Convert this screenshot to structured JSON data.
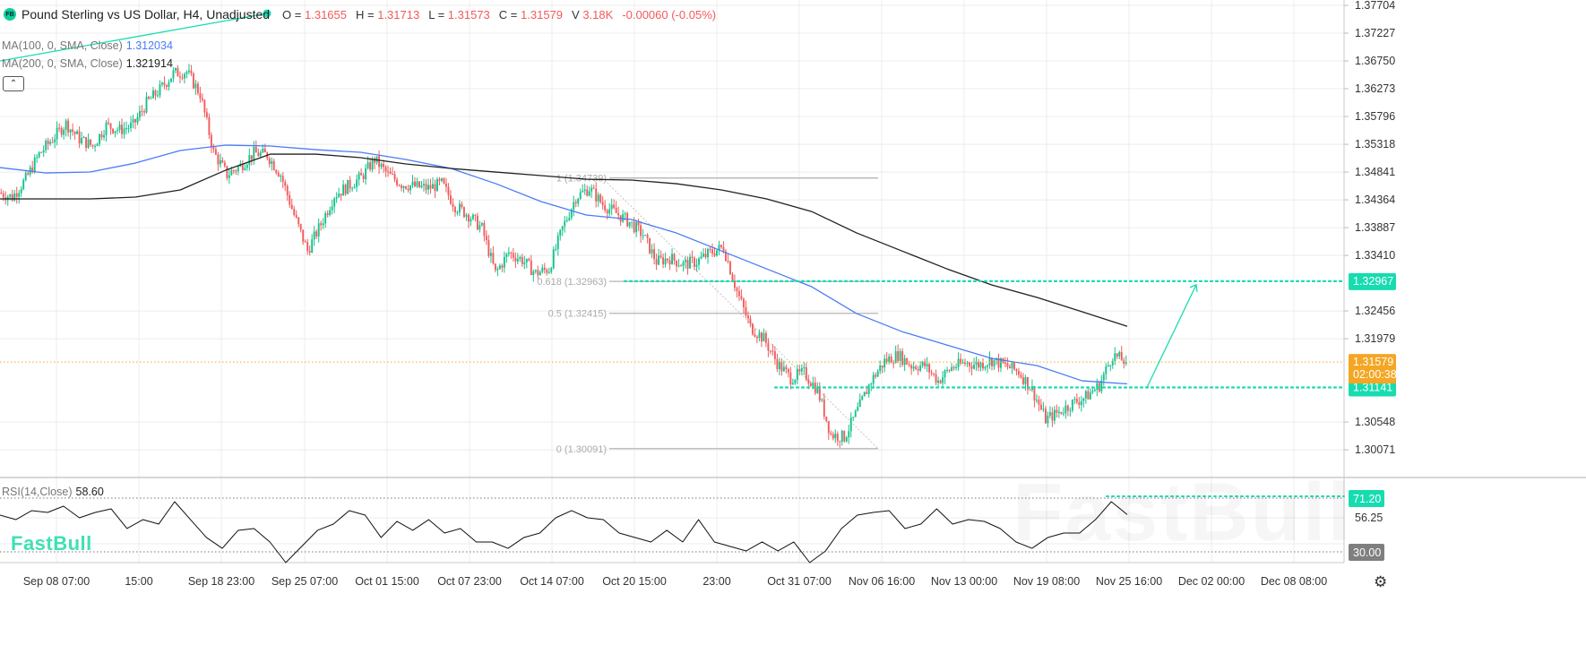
{
  "header": {
    "badge": "FB",
    "title": "Pound Sterling vs US Dollar, H4, Unadjusted",
    "ohlc": [
      {
        "label": "O =",
        "value": "1.31655"
      },
      {
        "label": "H =",
        "value": "1.31713"
      },
      {
        "label": "L =",
        "value": "1.31573"
      },
      {
        "label": "C =",
        "value": "1.31579"
      },
      {
        "label": "V",
        "value": "3.18K"
      }
    ],
    "change": "-0.00060 (-0.05%)"
  },
  "indicators": {
    "ma100": {
      "label": "MA(100, 0, SMA, Close)",
      "value": "1.312034",
      "color": "#4a7cf6"
    },
    "ma200": {
      "label": "MA(200, 0, SMA, Close)",
      "value": "1.321914",
      "color": "#222222"
    },
    "rsi": {
      "label": "RSI(14,Close)",
      "value": "58.60"
    }
  },
  "collapse_icon": "chevron-up-icon",
  "logo_text": "FastBull",
  "settings_icon": "gear-icon",
  "colors": {
    "up": "#12c28c",
    "down": "#f25b5b",
    "accent": "#16dcb0",
    "last_price": "#f5a623",
    "rsi_low_tag": "#7f7f7f"
  },
  "chart_data": [
    {
      "type": "candlestick",
      "title": "Pound Sterling vs US Dollar, H4, Unadjusted",
      "y_axis": {
        "position": "right",
        "ylim": [
          1.299,
          1.3775
        ],
        "ticks": [
          "1.37704",
          "1.37227",
          "1.36750",
          "1.36273",
          "1.35796",
          "1.35318",
          "1.34841",
          "1.34364",
          "1.33887",
          "1.33410",
          "1.32456",
          "1.31979",
          "1.30548",
          "1.30071"
        ]
      },
      "x_axis": {
        "ticks": [
          "Sep 08 07:00",
          "15:00",
          "Sep 18 23:00",
          "Sep 25 07:00",
          "Oct 01 15:00",
          "Oct 07 23:00",
          "Oct 14 07:00",
          "Oct 20 15:00",
          "23:00",
          "Oct 31 07:00",
          "Nov 06 16:00",
          "Nov 13 00:00",
          "Nov 19 08:00",
          "Nov 25 16:00",
          "Dec 02 00:00",
          "Dec 08 08:00"
        ]
      },
      "grid": true,
      "close_approx": [
        1.34487,
        1.34411,
        1.34718,
        1.35149,
        1.35411,
        1.35673,
        1.35411,
        1.35288,
        1.35642,
        1.35565,
        1.35642,
        1.36026,
        1.36257,
        1.36534,
        1.36565,
        1.3618,
        1.3518,
        1.34795,
        1.34949,
        1.35165,
        1.35134,
        1.34795,
        1.34103,
        1.33487,
        1.33949,
        1.34441,
        1.34595,
        1.34749,
        1.35057,
        1.34795,
        1.34641,
        1.34595,
        1.34564,
        1.34641,
        1.34257,
        1.34103,
        1.33872,
        1.33102,
        1.33456,
        1.33333,
        1.33102,
        1.33179,
        1.33872,
        1.34411,
        1.34564,
        1.34287,
        1.34134,
        1.3398,
        1.33764,
        1.33302,
        1.33364,
        1.33256,
        1.33302,
        1.33456,
        1.33549,
        1.32795,
        1.32179,
        1.31979,
        1.31563,
        1.31302,
        1.31394,
        1.31102,
        1.30332,
        1.30286,
        1.30748,
        1.31256,
        1.31594,
        1.31702,
        1.31517,
        1.31517,
        1.31256,
        1.31486,
        1.31563,
        1.31533,
        1.3161,
        1.31517,
        1.31409,
        1.31102,
        1.30594,
        1.30717,
        1.30871,
        1.30979,
        1.31179,
        1.317,
        1.31579
      ],
      "series": [
        {
          "name": "MA(100, 0, SMA, Close)",
          "color": "#4a7cf6",
          "values": [
            1.34918,
            1.34826,
            1.34842,
            1.34995,
            1.35211,
            1.35303,
            1.35288,
            1.35226,
            1.3518,
            1.35057,
            1.34903,
            1.34641,
            1.34334,
            1.34103,
            1.34026,
            1.33795,
            1.33487,
            1.33179,
            1.32872,
            1.3241,
            1.32102,
            1.31871,
            1.3164,
            1.31517,
            1.31256,
            1.31203
          ]
        },
        {
          "name": "MA(200, 0, SMA, Close)",
          "color": "#222222",
          "values": [
            1.3438,
            1.3438,
            1.3438,
            1.34411,
            1.34534,
            1.34872,
            1.35149,
            1.35149,
            1.35088,
            1.3498,
            1.34903,
            1.34841,
            1.3478,
            1.34718,
            1.34703,
            1.34641,
            1.34534,
            1.3438,
            1.34164,
            1.33795,
            1.33487,
            1.33179,
            1.32902,
            1.32687,
            1.32441,
            1.32191
          ]
        }
      ],
      "fibonacci": [
        {
          "level": "1",
          "price": 1.34739,
          "label": "1 (1.34739)"
        },
        {
          "level": "0.618",
          "price": 1.32963,
          "label": "0.618 (1.32963)"
        },
        {
          "level": "0.5",
          "price": 1.32415,
          "label": "0.5 (1.32415)"
        },
        {
          "level": "0",
          "price": 1.30091,
          "label": "0 (1.30091)"
        }
      ],
      "horizontal_levels": [
        {
          "price": 1.32967,
          "label": "1.32967",
          "color": "#16dcb0"
        },
        {
          "price": 1.31141,
          "label": "1.31141",
          "color": "#16dcb0"
        }
      ],
      "last_price": {
        "price": 1.31579,
        "label": "1.31579",
        "countdown": "02:00:38"
      },
      "annotation": "upward-arrow-projection"
    },
    {
      "type": "line",
      "title": "RSI(14,Close)",
      "y_axis": {
        "position": "right",
        "ticks": [
          "56.25"
        ],
        "ylim": [
          15,
          80
        ]
      },
      "levels": [
        {
          "value": 71.2,
          "label": "71.20"
        },
        {
          "value": 30.0,
          "label": "30.00"
        }
      ],
      "values": [
        58.15,
        54.7,
        61.6,
        60.2,
        65.0,
        56.1,
        60.2,
        62.96,
        47.85,
        54.7,
        51.3,
        68.45,
        54.7,
        41.0,
        32.7,
        46.5,
        47.85,
        37.55,
        21.75,
        34.1,
        46.5,
        51.3,
        61.6,
        58.15,
        41.0,
        53.35,
        46.5,
        54.7,
        44.4,
        47.85,
        37.55,
        37.55,
        32.7,
        41.0,
        44.4,
        56.1,
        61.6,
        56.1,
        54.7,
        44.4,
        41.0,
        37.55,
        46.5,
        37.55,
        54.7,
        37.55,
        34.1,
        30.7,
        37.55,
        30.7,
        37.55,
        21.75,
        30.7,
        47.85,
        58.15,
        60.2,
        61.6,
        47.85,
        51.3,
        62.96,
        51.3,
        54.7,
        53.35,
        47.85,
        37.55,
        32.7,
        41.0,
        44.4,
        44.4,
        54.7,
        68.45,
        58.6
      ]
    }
  ]
}
